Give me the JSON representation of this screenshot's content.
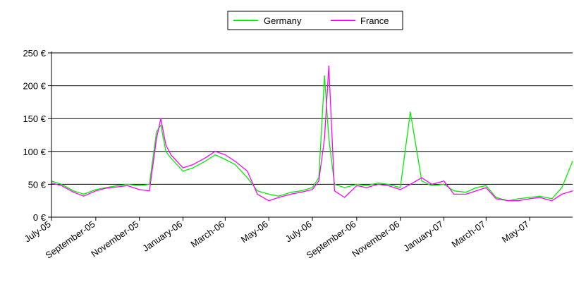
{
  "chart_data": {
    "type": "line",
    "title": "",
    "xlabel": "",
    "ylabel": "",
    "ylim": [
      0,
      250
    ],
    "yticks": [
      "0 €",
      "50 €",
      "100 €",
      "150 €",
      "200 €",
      "250 €"
    ],
    "ytick_values": [
      0,
      50,
      100,
      150,
      200,
      250
    ],
    "x_start": "2005-07",
    "x_end": "2007-06",
    "xtick_labels": [
      "July-05",
      "September-05",
      "November-05",
      "January-06",
      "March-06",
      "May-06",
      "July-06",
      "September-06",
      "November-06",
      "January-07",
      "March-07",
      "May-07"
    ],
    "grid": "horizontal",
    "legend_position": "top-center",
    "x_dates": [
      "2005-07-01",
      "2005-07-15",
      "2005-08-01",
      "2005-08-15",
      "2005-09-01",
      "2005-09-15",
      "2005-10-01",
      "2005-10-15",
      "2005-11-01",
      "2005-11-15",
      "2005-11-25",
      "2005-12-01",
      "2005-12-08",
      "2005-12-15",
      "2006-01-01",
      "2006-01-15",
      "2006-02-01",
      "2006-02-15",
      "2006-03-01",
      "2006-03-15",
      "2006-04-01",
      "2006-04-15",
      "2006-05-01",
      "2006-05-15",
      "2006-06-01",
      "2006-06-15",
      "2006-07-01",
      "2006-07-10",
      "2006-07-18",
      "2006-07-24",
      "2006-08-01",
      "2006-08-15",
      "2006-09-01",
      "2006-09-15",
      "2006-10-01",
      "2006-10-15",
      "2006-11-01",
      "2006-11-15",
      "2006-12-01",
      "2006-12-15",
      "2007-01-01",
      "2007-01-15",
      "2007-02-01",
      "2007-02-15",
      "2007-03-01",
      "2007-03-15",
      "2007-04-01",
      "2007-04-15",
      "2007-05-01",
      "2007-05-15",
      "2007-06-01",
      "2007-06-15",
      "2007-06-30"
    ],
    "series": [
      {
        "name": "Germany",
        "color": "#00ee00",
        "values": [
          55,
          50,
          40,
          35,
          42,
          45,
          48,
          50,
          48,
          50,
          130,
          140,
          100,
          90,
          70,
          75,
          85,
          95,
          88,
          80,
          60,
          40,
          35,
          32,
          38,
          40,
          45,
          60,
          215,
          120,
          50,
          45,
          50,
          48,
          52,
          50,
          45,
          160,
          55,
          48,
          50,
          40,
          38,
          45,
          48,
          30,
          25,
          28,
          30,
          32,
          28,
          45,
          85
        ]
      },
      {
        "name": "France",
        "color": "#ff00ff",
        "values": [
          52,
          48,
          38,
          32,
          40,
          44,
          46,
          48,
          42,
          40,
          120,
          150,
          110,
          95,
          75,
          80,
          90,
          100,
          95,
          85,
          70,
          35,
          25,
          30,
          35,
          38,
          42,
          55,
          120,
          230,
          40,
          30,
          48,
          45,
          50,
          48,
          42,
          50,
          60,
          50,
          55,
          35,
          35,
          40,
          45,
          28,
          25,
          25,
          28,
          30,
          25,
          35,
          40
        ]
      }
    ]
  }
}
